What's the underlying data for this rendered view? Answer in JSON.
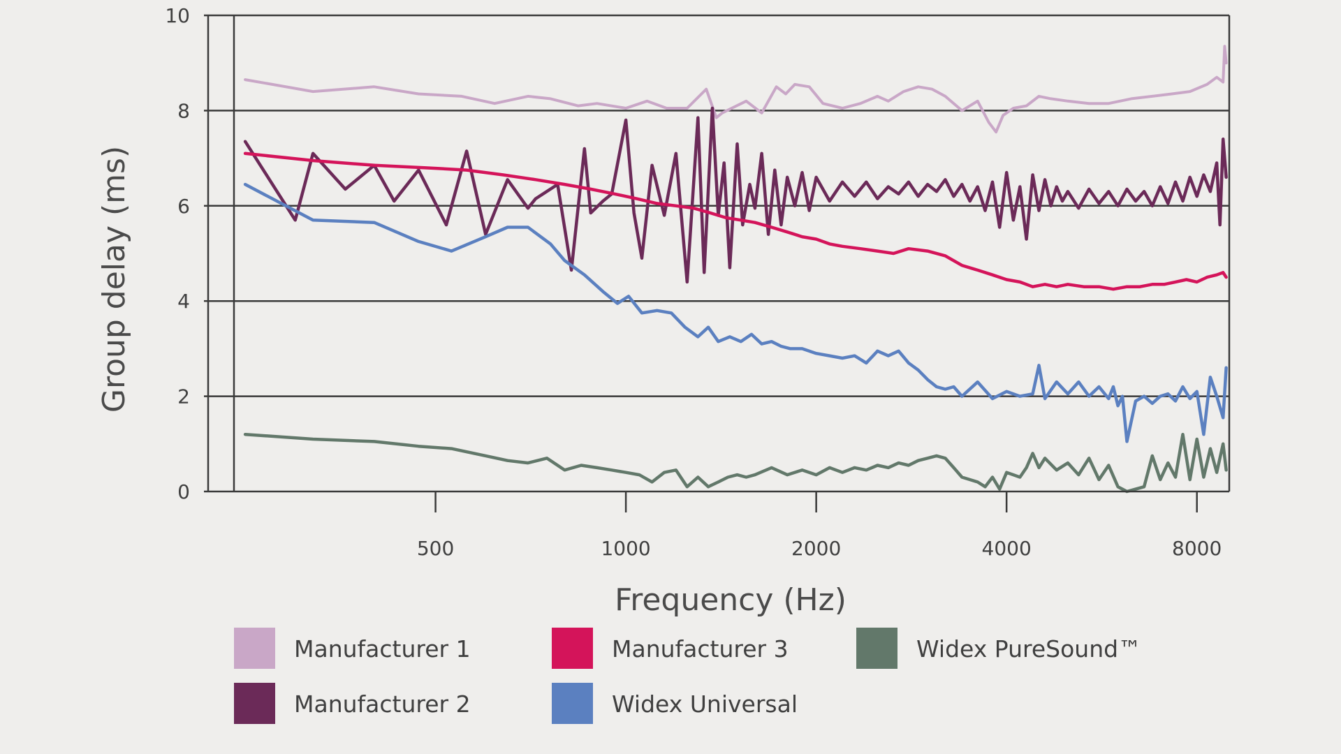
{
  "chart_data": {
    "type": "line",
    "title": "",
    "xlabel": "Frequency (Hz)",
    "ylabel": "Group delay (ms)",
    "xscale": "log",
    "xlim": [
      240,
      9000
    ],
    "ylim": [
      0,
      10
    ],
    "x_ticks": [
      500,
      1000,
      2000,
      4000,
      8000
    ],
    "x_tick_labels": [
      "500",
      "1000",
      "2000",
      "4000",
      "8000"
    ],
    "y_ticks": [
      0,
      2,
      4,
      6,
      8,
      10
    ],
    "y_tick_labels": [
      "0",
      "2",
      "4",
      "6",
      "8",
      "10"
    ],
    "grid": "horizontal",
    "legend_position": "bottom",
    "series": [
      {
        "name": "Manufacturer 1",
        "color": "#c9a7c7",
        "x": [
          250,
          320,
          400,
          470,
          550,
          620,
          700,
          760,
          840,
          900,
          1000,
          1080,
          1160,
          1250,
          1340,
          1390,
          1420,
          1470,
          1550,
          1640,
          1730,
          1790,
          1850,
          1950,
          2050,
          2200,
          2350,
          2500,
          2600,
          2750,
          2900,
          3050,
          3200,
          3400,
          3600,
          3750,
          3850,
          3950,
          4100,
          4300,
          4500,
          4700,
          5000,
          5400,
          5800,
          6300,
          6800,
          7300,
          7800,
          8300,
          8600,
          8800,
          8850,
          8900
        ],
        "values": [
          8.65,
          8.4,
          8.5,
          8.35,
          8.3,
          8.15,
          8.3,
          8.25,
          8.1,
          8.15,
          8.05,
          8.2,
          8.05,
          8.05,
          8.45,
          7.85,
          7.95,
          8.05,
          8.2,
          7.95,
          8.5,
          8.35,
          8.55,
          8.5,
          8.15,
          8.05,
          8.15,
          8.3,
          8.2,
          8.4,
          8.5,
          8.45,
          8.3,
          8.0,
          8.2,
          7.75,
          7.55,
          7.9,
          8.05,
          8.1,
          8.3,
          8.25,
          8.2,
          8.15,
          8.15,
          8.25,
          8.3,
          8.35,
          8.4,
          8.55,
          8.7,
          8.6,
          9.35,
          9.0
        ]
      },
      {
        "name": "Manufacturer 2",
        "color": "#6b2a58",
        "x": [
          250,
          300,
          320,
          360,
          400,
          430,
          470,
          520,
          560,
          600,
          650,
          700,
          720,
          780,
          820,
          860,
          880,
          920,
          950,
          1000,
          1030,
          1060,
          1100,
          1150,
          1200,
          1250,
          1300,
          1330,
          1370,
          1400,
          1430,
          1460,
          1500,
          1530,
          1570,
          1600,
          1640,
          1680,
          1720,
          1760,
          1800,
          1850,
          1900,
          1950,
          2000,
          2100,
          2200,
          2300,
          2400,
          2500,
          2600,
          2700,
          2800,
          2900,
          3000,
          3100,
          3200,
          3300,
          3400,
          3500,
          3600,
          3700,
          3800,
          3900,
          4000,
          4100,
          4200,
          4300,
          4400,
          4500,
          4600,
          4700,
          4800,
          4900,
          5000,
          5200,
          5400,
          5600,
          5800,
          6000,
          6200,
          6400,
          6600,
          6800,
          7000,
          7200,
          7400,
          7600,
          7800,
          8000,
          8200,
          8400,
          8600,
          8700,
          8800,
          8900
        ],
        "values": [
          7.35,
          5.7,
          7.1,
          6.35,
          6.85,
          6.1,
          6.75,
          5.6,
          7.15,
          5.4,
          6.55,
          5.95,
          6.15,
          6.45,
          4.65,
          7.2,
          5.85,
          6.1,
          6.25,
          7.8,
          5.85,
          4.9,
          6.85,
          5.8,
          7.1,
          4.4,
          7.85,
          4.6,
          8.05,
          5.8,
          6.9,
          4.7,
          7.3,
          5.6,
          6.45,
          5.95,
          7.1,
          5.4,
          6.75,
          5.6,
          6.6,
          6.0,
          6.7,
          5.9,
          6.6,
          6.1,
          6.5,
          6.2,
          6.5,
          6.15,
          6.4,
          6.25,
          6.5,
          6.2,
          6.45,
          6.3,
          6.55,
          6.2,
          6.45,
          6.1,
          6.4,
          5.9,
          6.5,
          5.55,
          6.7,
          5.7,
          6.4,
          5.3,
          6.65,
          5.9,
          6.55,
          6.0,
          6.4,
          6.1,
          6.3,
          5.95,
          6.35,
          6.05,
          6.3,
          6.0,
          6.35,
          6.1,
          6.3,
          6.0,
          6.4,
          6.05,
          6.5,
          6.1,
          6.6,
          6.2,
          6.65,
          6.3,
          6.9,
          5.6,
          7.4,
          6.6
        ]
      },
      {
        "name": "Manufacturer 3",
        "color": "#d4145a",
        "x": [
          250,
          320,
          400,
          480,
          560,
          640,
          720,
          800,
          880,
          960,
          1040,
          1120,
          1200,
          1280,
          1360,
          1440,
          1520,
          1600,
          1700,
          1800,
          1900,
          2000,
          2100,
          2200,
          2350,
          2500,
          2650,
          2800,
          3000,
          3200,
          3400,
          3600,
          3800,
          4000,
          4200,
          4400,
          4600,
          4800,
          5000,
          5300,
          5600,
          5900,
          6200,
          6500,
          6800,
          7100,
          7400,
          7700,
          8000,
          8300,
          8600,
          8800,
          8900
        ],
        "values": [
          7.1,
          6.95,
          6.85,
          6.8,
          6.75,
          6.65,
          6.55,
          6.45,
          6.35,
          6.25,
          6.15,
          6.05,
          6.0,
          5.95,
          5.85,
          5.75,
          5.7,
          5.65,
          5.55,
          5.45,
          5.35,
          5.3,
          5.2,
          5.15,
          5.1,
          5.05,
          5.0,
          5.1,
          5.05,
          4.95,
          4.75,
          4.65,
          4.55,
          4.45,
          4.4,
          4.3,
          4.35,
          4.3,
          4.35,
          4.3,
          4.3,
          4.25,
          4.3,
          4.3,
          4.35,
          4.35,
          4.4,
          4.45,
          4.4,
          4.5,
          4.55,
          4.6,
          4.5
        ]
      },
      {
        "name": "Widex Universal",
        "color": "#5b80c0",
        "x": [
          250,
          320,
          400,
          470,
          530,
          600,
          650,
          700,
          760,
          800,
          860,
          920,
          970,
          1010,
          1060,
          1120,
          1180,
          1240,
          1300,
          1350,
          1400,
          1460,
          1520,
          1580,
          1640,
          1700,
          1760,
          1820,
          1900,
          2000,
          2100,
          2200,
          2300,
          2400,
          2500,
          2600,
          2700,
          2800,
          2900,
          3000,
          3100,
          3200,
          3300,
          3400,
          3600,
          3800,
          4000,
          4200,
          4400,
          4500,
          4600,
          4800,
          5000,
          5200,
          5400,
          5600,
          5800,
          5900,
          6000,
          6100,
          6200,
          6400,
          6600,
          6800,
          7000,
          7200,
          7400,
          7600,
          7800,
          8000,
          8200,
          8400,
          8600,
          8800,
          8900
        ],
        "values": [
          6.45,
          5.7,
          5.65,
          5.25,
          5.05,
          5.35,
          5.55,
          5.55,
          5.2,
          4.85,
          4.55,
          4.2,
          3.95,
          4.1,
          3.75,
          3.8,
          3.75,
          3.45,
          3.25,
          3.45,
          3.15,
          3.25,
          3.15,
          3.3,
          3.1,
          3.15,
          3.05,
          3.0,
          3.0,
          2.9,
          2.85,
          2.8,
          2.85,
          2.7,
          2.95,
          2.85,
          2.95,
          2.7,
          2.55,
          2.35,
          2.2,
          2.15,
          2.2,
          2.0,
          2.3,
          1.95,
          2.1,
          2.0,
          2.05,
          2.65,
          1.95,
          2.3,
          2.05,
          2.3,
          2.0,
          2.2,
          1.95,
          2.2,
          1.8,
          2.0,
          1.05,
          1.9,
          2.0,
          1.85,
          2.0,
          2.05,
          1.9,
          2.2,
          1.95,
          2.1,
          1.2,
          2.4,
          2.0,
          1.55,
          2.6
        ]
      },
      {
        "name": "Widex PureSound™",
        "color": "#62786a",
        "x": [
          250,
          320,
          400,
          470,
          530,
          600,
          650,
          700,
          750,
          800,
          850,
          900,
          950,
          1000,
          1050,
          1100,
          1150,
          1200,
          1250,
          1300,
          1350,
          1400,
          1450,
          1500,
          1550,
          1600,
          1700,
          1800,
          1900,
          2000,
          2100,
          2200,
          2300,
          2400,
          2500,
          2600,
          2700,
          2800,
          2900,
          3000,
          3100,
          3200,
          3300,
          3400,
          3500,
          3600,
          3700,
          3800,
          3900,
          4000,
          4100,
          4200,
          4300,
          4400,
          4500,
          4600,
          4800,
          5000,
          5200,
          5400,
          5600,
          5800,
          6000,
          6200,
          6400,
          6600,
          6800,
          7000,
          7200,
          7400,
          7600,
          7800,
          8000,
          8200,
          8400,
          8600,
          8800,
          8900
        ],
        "values": [
          1.2,
          1.1,
          1.05,
          0.95,
          0.9,
          0.75,
          0.65,
          0.6,
          0.7,
          0.45,
          0.55,
          0.5,
          0.45,
          0.4,
          0.35,
          0.2,
          0.4,
          0.45,
          0.1,
          0.3,
          0.1,
          0.2,
          0.3,
          0.35,
          0.3,
          0.35,
          0.5,
          0.35,
          0.45,
          0.35,
          0.5,
          0.4,
          0.5,
          0.45,
          0.55,
          0.5,
          0.6,
          0.55,
          0.65,
          0.7,
          0.75,
          0.7,
          0.5,
          0.3,
          0.25,
          0.2,
          0.1,
          0.3,
          0.05,
          0.4,
          0.35,
          0.3,
          0.5,
          0.8,
          0.5,
          0.7,
          0.45,
          0.6,
          0.35,
          0.7,
          0.25,
          0.55,
          0.1,
          0.0,
          0.05,
          0.1,
          0.75,
          0.25,
          0.6,
          0.3,
          1.2,
          0.25,
          1.1,
          0.3,
          0.9,
          0.4,
          1.0,
          0.45
        ]
      }
    ]
  }
}
